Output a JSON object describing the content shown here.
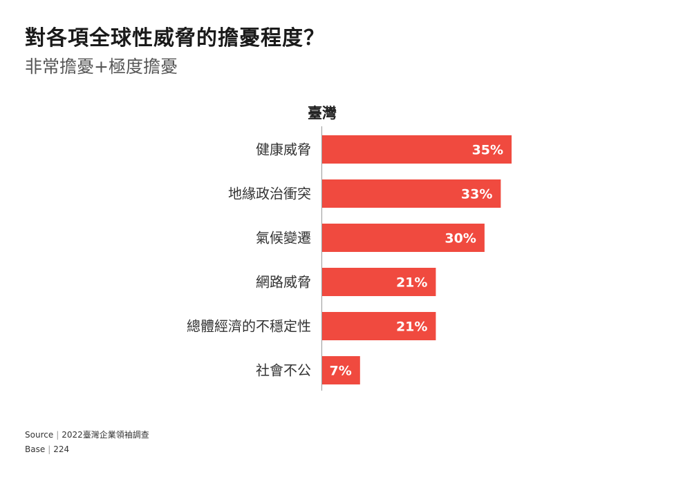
{
  "header": {
    "title": "對各項全球性威脅的擔憂程度？",
    "subtitle": "非常擔憂+極度擔憂"
  },
  "colors": {
    "bar": "#f04a3f",
    "bar_label": "#ffffff",
    "axis": "#999999",
    "text": "#333333"
  },
  "chart_data": {
    "type": "bar",
    "orientation": "horizontal",
    "title": "臺灣",
    "categories": [
      "健康威脅",
      "地緣政治衝突",
      "氣候變遷",
      "網路威脅",
      "總體經濟的不穩定性",
      "社會不公"
    ],
    "values": [
      35,
      33,
      30,
      21,
      21,
      7
    ],
    "data_labels": [
      "35%",
      "33%",
      "30%",
      "21%",
      "21%",
      "7%"
    ],
    "value_unit": "%",
    "xlim": [
      0,
      100
    ],
    "grid": false,
    "legend": "none"
  },
  "footer": {
    "source_label": "Source",
    "source_value": "2022臺灣企業領袖調查",
    "base_label": "Base",
    "base_value": "224"
  }
}
